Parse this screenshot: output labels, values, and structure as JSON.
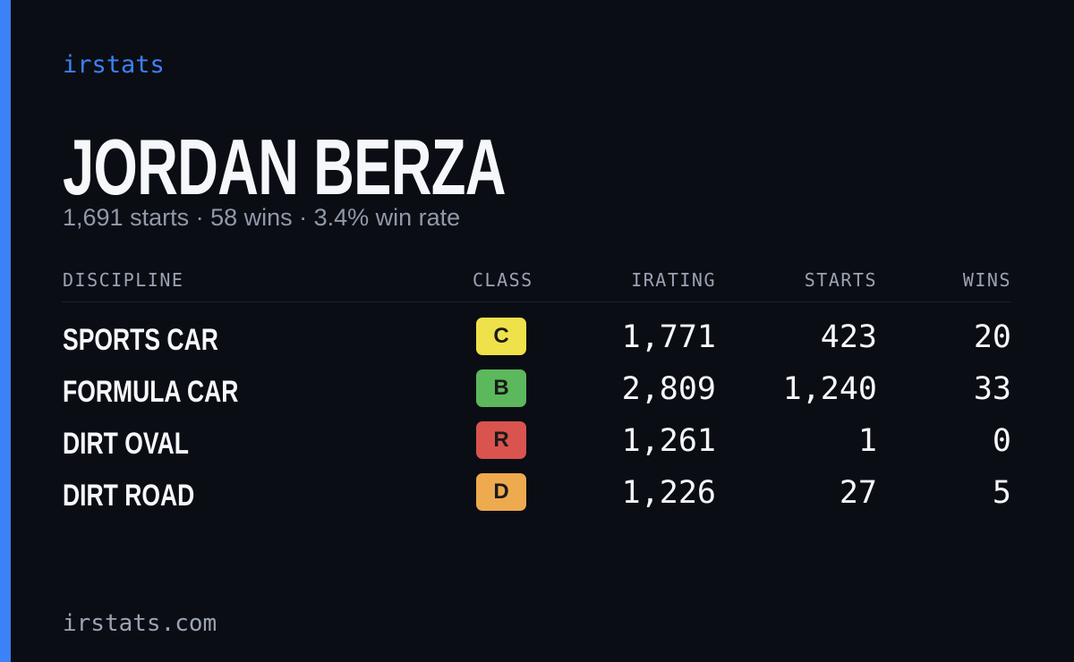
{
  "brand": "irstats",
  "driver": {
    "name": "JORDAN BERZA",
    "summary": "1,691 starts · 58 wins · 3.4% win rate"
  },
  "table": {
    "headers": [
      "DISCIPLINE",
      "CLASS",
      "IRATING",
      "STARTS",
      "WINS"
    ],
    "rows": [
      [
        "SPORTS CAR",
        "C",
        "1,771",
        "423",
        "20"
      ],
      [
        "FORMULA CAR",
        "B",
        "2,809",
        "1,240",
        "33"
      ],
      [
        "DIRT OVAL",
        "R",
        "1,261",
        "1",
        "0"
      ],
      [
        "DIRT ROAD",
        "D",
        "1,226",
        "27",
        "5"
      ]
    ]
  },
  "footer": "irstats.com"
}
